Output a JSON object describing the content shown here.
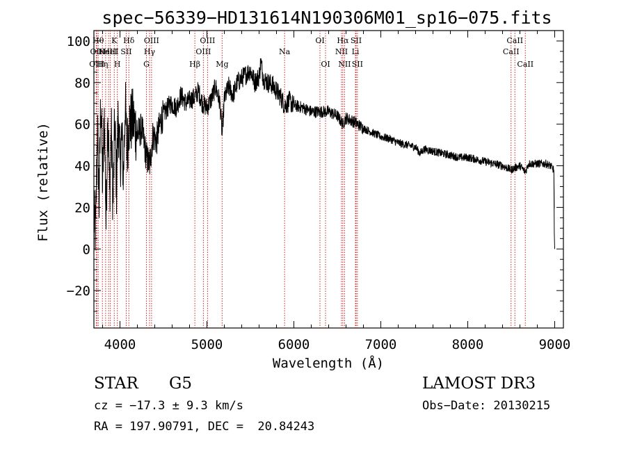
{
  "chart_data": {
    "type": "line",
    "title": "spec−56339−HD131614N190306M01_sp16−075.fits",
    "xlabel": "Wavelength (Å)",
    "ylabel": "Flux (relative)",
    "xlim": [
      3700,
      9100
    ],
    "ylim": [
      -38,
      105
    ],
    "xticks": [
      4000,
      5000,
      6000,
      7000,
      8000,
      9000
    ],
    "xtick_labels": [
      "4000",
      "5000",
      "6000",
      "7000",
      "8000",
      "9000"
    ],
    "yticks": [
      -20,
      0,
      20,
      40,
      60,
      80,
      100
    ],
    "ytick_labels": [
      "−20",
      "0",
      "20",
      "40",
      "60",
      "80",
      "100"
    ],
    "grid": false,
    "series": [
      {
        "name": "spectrum",
        "x": [
          3700,
          3720,
          3740,
          3760,
          3780,
          3800,
          3820,
          3840,
          3860,
          3880,
          3900,
          3920,
          3940,
          3960,
          3980,
          4000,
          4020,
          4040,
          4060,
          4080,
          4100,
          4150,
          4200,
          4250,
          4300,
          4340,
          4380,
          4420,
          4470,
          4520,
          4580,
          4650,
          4700,
          4760,
          4820,
          4861,
          4900,
          4950,
          5000,
          5050,
          5100,
          5150,
          5175,
          5200,
          5250,
          5300,
          5350,
          5400,
          5450,
          5500,
          5550,
          5600,
          5620,
          5650,
          5700,
          5750,
          5800,
          5850,
          5893,
          5950,
          6000,
          6100,
          6200,
          6300,
          6400,
          6500,
          6563,
          6600,
          6650,
          6700,
          6800,
          6900,
          7000,
          7100,
          7200,
          7300,
          7400,
          7450,
          7500,
          7600,
          7700,
          7800,
          7900,
          8000,
          8100,
          8200,
          8300,
          8400,
          8498,
          8542,
          8600,
          8662,
          8700,
          8800,
          8900,
          8950,
          8990,
          9000
        ],
        "values": [
          15,
          8,
          60,
          22,
          75,
          30,
          65,
          12,
          70,
          25,
          58,
          20,
          62,
          30,
          66,
          40,
          55,
          35,
          72,
          45,
          60,
          62,
          55,
          58,
          45,
          40,
          55,
          52,
          62,
          66,
          70,
          68,
          74,
          70,
          72,
          73,
          76,
          70,
          68,
          72,
          78,
          70,
          55,
          72,
          78,
          74,
          80,
          82,
          84,
          86,
          80,
          83,
          90,
          82,
          80,
          79,
          76,
          73,
          69,
          71,
          69,
          68,
          66,
          66,
          66,
          64,
          60,
          63,
          62,
          61,
          58,
          56,
          54,
          53,
          51,
          50,
          49,
          46,
          48,
          47,
          46,
          45,
          44,
          44,
          43,
          42,
          41,
          40,
          38,
          39,
          40,
          37,
          41,
          41,
          41,
          40,
          38,
          0
        ]
      }
    ],
    "line_markers": [
      {
        "wl": 3750,
        "label": "Hθ",
        "row": 1
      },
      {
        "wl": 3727,
        "label": "OII",
        "row": 2
      },
      {
        "wl": 3734,
        "label": "OIII",
        "row": 3
      },
      {
        "wl": 3798,
        "label": "Hη",
        "row": 3
      },
      {
        "wl": 3835,
        "label": "HeI",
        "row": 2
      },
      {
        "wl": 3869,
        "label": "NeIII",
        "row": 2
      },
      {
        "wl": 3889,
        "label": "HeI",
        "row": 2
      },
      {
        "wl": 3934,
        "label": "K",
        "row": 1
      },
      {
        "wl": 3969,
        "label": "H",
        "row": 3
      },
      {
        "wl": 4072,
        "label": "SII",
        "row": 2
      },
      {
        "wl": 4102,
        "label": "Hδ",
        "row": 1
      },
      {
        "wl": 4340,
        "label": "Hγ",
        "row": 2
      },
      {
        "wl": 4363,
        "label": "OIII",
        "row": 1
      },
      {
        "wl": 4304,
        "label": "G",
        "row": 3
      },
      {
        "wl": 4861,
        "label": "Hβ",
        "row": 3
      },
      {
        "wl": 4959,
        "label": "OIII",
        "row": 2
      },
      {
        "wl": 5007,
        "label": "OIII",
        "row": 1
      },
      {
        "wl": 5175,
        "label": "Mg",
        "row": 3
      },
      {
        "wl": 5893,
        "label": "Na",
        "row": 2
      },
      {
        "wl": 6300,
        "label": "OI",
        "row": 1
      },
      {
        "wl": 6364,
        "label": "OI",
        "row": 3
      },
      {
        "wl": 6548,
        "label": "NII",
        "row": 2
      },
      {
        "wl": 6563,
        "label": "Hα",
        "row": 1
      },
      {
        "wl": 6583,
        "label": "NII",
        "row": 3
      },
      {
        "wl": 6708,
        "label": "Li",
        "row": 2
      },
      {
        "wl": 6716,
        "label": "SII",
        "row": 1
      },
      {
        "wl": 6731,
        "label": "SII",
        "row": 3
      },
      {
        "wl": 8498,
        "label": "CaII",
        "row": 2
      },
      {
        "wl": 8542,
        "label": "CaII",
        "row": 1
      },
      {
        "wl": 8662,
        "label": "CaII",
        "row": 3
      }
    ],
    "marker_color": "#cc2222"
  },
  "info": {
    "object_type": "STAR",
    "subclass": "G5",
    "survey": "LAMOST DR3",
    "cz": "cz = −17.3 ± 9.3 km/s",
    "obs_date": "Obs−Date: 20130215",
    "radec": "RA = 197.90791, DEC =  20.84243"
  }
}
